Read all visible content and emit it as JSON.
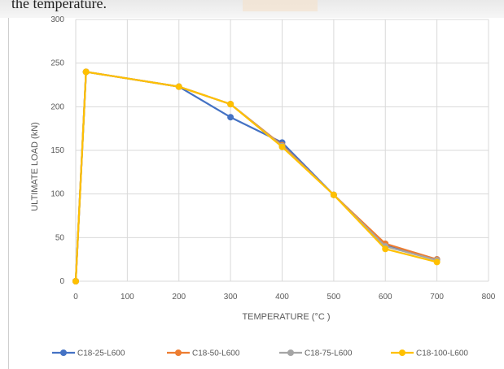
{
  "caption": {
    "text": "the temperature."
  },
  "chart_data": {
    "type": "line",
    "title": "",
    "xlabel": "TEMPERATURE (°C )",
    "ylabel": "ULTIMATE LOAD (kN)",
    "xlim": [
      0,
      800
    ],
    "ylim": [
      0,
      300
    ],
    "xticks": [
      0,
      100,
      200,
      300,
      400,
      500,
      600,
      700,
      800
    ],
    "yticks": [
      0,
      50,
      100,
      150,
      200,
      250,
      300
    ],
    "grid": true,
    "legend_position": "bottom",
    "x": [
      0,
      20,
      200,
      300,
      400,
      500,
      600,
      700
    ],
    "series": [
      {
        "name": "C18-25-L600",
        "color": "#4472C4",
        "values": [
          0,
          240,
          223,
          188,
          159,
          99,
          42,
          25
        ]
      },
      {
        "name": "C18-50-L600",
        "color": "#ED7D31",
        "values": [
          0,
          240,
          223,
          203,
          156,
          99,
          43,
          25
        ]
      },
      {
        "name": "C18-75-L600",
        "color": "#A5A5A5",
        "values": [
          0,
          240,
          223,
          203,
          155,
          99,
          40,
          24
        ]
      },
      {
        "name": "C18-100-L600",
        "color": "#FFC000",
        "values": [
          0,
          240,
          223,
          203,
          154,
          99,
          37,
          22
        ]
      }
    ]
  }
}
